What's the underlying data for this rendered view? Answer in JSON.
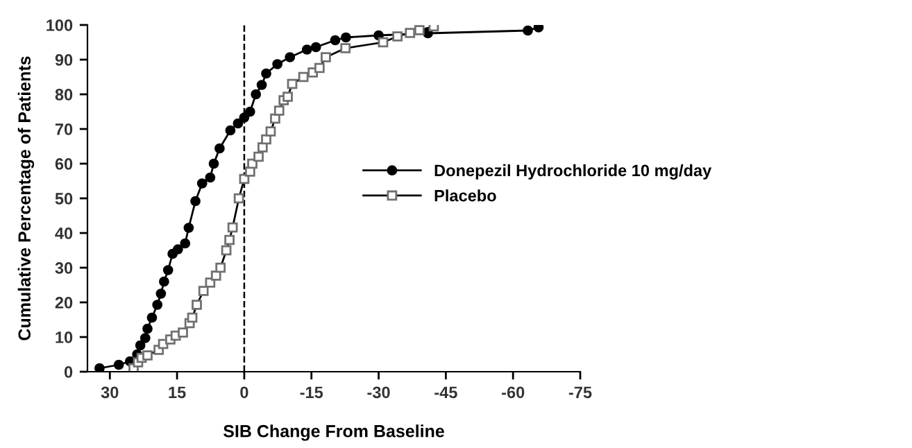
{
  "chart_data": {
    "type": "line",
    "xlabel": "SIB Change From Baseline",
    "ylabel": "Cumulative Percentage of Patients",
    "xlim": [
      35,
      -75
    ],
    "xticks": [
      30,
      15,
      0,
      -15,
      -30,
      -45,
      -60,
      -75
    ],
    "ylim": [
      0,
      100
    ],
    "yticks": [
      0,
      10,
      20,
      30,
      40,
      50,
      60,
      70,
      80,
      90,
      100
    ],
    "grid": false,
    "legend": "right",
    "line_style": "solid",
    "ref_lines": [
      {
        "axis": "x",
        "value": 0,
        "line_style": "dashed",
        "color": "#000000"
      }
    ],
    "series": [
      {
        "name": "Donepezil Hydrochloride 10 mg/day",
        "color": "#000000",
        "marker": "circle",
        "x": [
          32.3,
          28,
          25.5,
          23.9,
          23.2,
          22.1,
          21.6,
          20.6,
          19.4,
          18.6,
          17.9,
          17,
          16,
          14.8,
          13.2,
          12.4,
          10.9,
          9.4,
          7.6,
          6.8,
          5.5,
          3.1,
          1.4,
          0,
          -1.3,
          -2.6,
          -3.9,
          -4.9,
          -7.4,
          -10.2,
          -14,
          -16,
          -20.3,
          -22.7,
          -30,
          -41,
          -63.3,
          -65.7
        ],
        "values": [
          1,
          2,
          3,
          5,
          7.6,
          9.7,
          12.4,
          15.6,
          19.3,
          22.5,
          26,
          29.3,
          34,
          35.3,
          37,
          41.5,
          49.2,
          54.3,
          56,
          60,
          64.4,
          69.6,
          71.6,
          73.3,
          75,
          80,
          82.7,
          86,
          88.7,
          90.7,
          92.9,
          93.6,
          95.6,
          96.4,
          97,
          97.6,
          98.4,
          99.3
        ]
      },
      {
        "name": "Placebo",
        "color": "#000000",
        "marker": "square",
        "x": [
          24.7,
          23.7,
          22.9,
          21.6,
          19.1,
          18.1,
          16.5,
          15.3,
          13.7,
          12.2,
          11.6,
          10.6,
          9.1,
          7.6,
          6.3,
          5.3,
          4,
          3.3,
          2.6,
          1.2,
          0,
          -1.3,
          -1.8,
          -3.2,
          -4.1,
          -4.9,
          -5.9,
          -6.9,
          -7.8,
          -8.8,
          -9.7,
          -10.7,
          -13.2,
          -15.3,
          -16.8,
          -18.2,
          -22.6,
          -31,
          -34.2,
          -37,
          -39.1,
          -42.3
        ],
        "values": [
          1,
          2.7,
          4,
          4.7,
          6.3,
          8,
          9.3,
          10.4,
          11.3,
          14,
          15.6,
          19.3,
          23.3,
          25.7,
          27.7,
          30,
          35,
          38,
          41.6,
          50,
          55.6,
          57.7,
          60,
          62,
          64.7,
          67,
          69.3,
          73,
          75.3,
          78.3,
          79.3,
          83,
          85,
          86.3,
          87.6,
          90.7,
          93.3,
          95,
          96.7,
          97.7,
          98.5,
          99.6
        ]
      }
    ]
  }
}
